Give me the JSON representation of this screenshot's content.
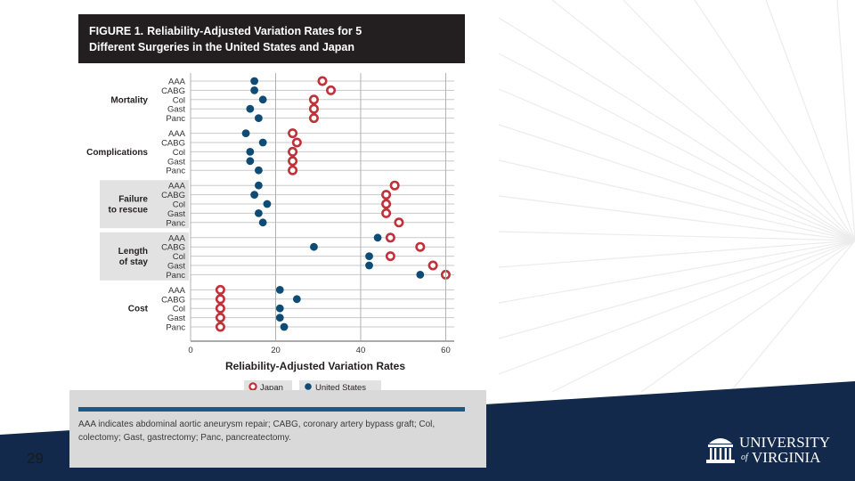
{
  "slide": {
    "number": "29"
  },
  "logo": {
    "line1": "UNIVERSITY",
    "of": "of",
    "line2": "VIRGINIA"
  },
  "colors": {
    "japan": "#c0313a",
    "us": "#0f4c75",
    "header_bg": "#231f20",
    "band": "#13294b",
    "footer_bar": "#1a5a8a"
  },
  "figure": {
    "label": "FIGURE 1.",
    "title_line1": "Reliability-Adjusted Variation Rates for 5",
    "title_line2": "Different Surgeries in the United States and Japan",
    "footnote": "AAA indicates abdominal aortic aneurysm repair; CABG, coronary artery bypass graft; Col, colectomy; Gast, gastrectomy; Panc, pancreatectomy."
  },
  "chart_data": {
    "type": "dot",
    "title": "Reliability-Adjusted Variation Rates for 5 Different Surgeries in the United States and Japan",
    "xlabel": "Reliability-Adjusted Variation Rates",
    "xlim": [
      0,
      62
    ],
    "xticks": [
      0,
      20,
      40,
      60
    ],
    "categories": [
      "AAA",
      "CABG",
      "Col",
      "Gast",
      "Panc"
    ],
    "legend": [
      "Japan",
      "United States"
    ],
    "groups": [
      {
        "name": "Mortality",
        "japan": [
          31,
          33,
          29,
          29,
          29
        ],
        "us": [
          15,
          15,
          17,
          14,
          16
        ]
      },
      {
        "name": "Complications",
        "japan": [
          24,
          25,
          24,
          24,
          24
        ],
        "us": [
          13,
          17,
          14,
          14,
          16
        ]
      },
      {
        "name": "Failure to rescue",
        "japan": [
          48,
          46,
          46,
          46,
          49
        ],
        "us": [
          16,
          15,
          18,
          16,
          17
        ]
      },
      {
        "name": "Length of stay",
        "japan": [
          47,
          54,
          47,
          57,
          60
        ],
        "us": [
          44,
          29,
          42,
          42,
          54
        ]
      },
      {
        "name": "Cost",
        "japan": [
          7,
          7,
          7,
          7,
          7
        ],
        "us": [
          21,
          25,
          21,
          21,
          22
        ]
      }
    ]
  }
}
